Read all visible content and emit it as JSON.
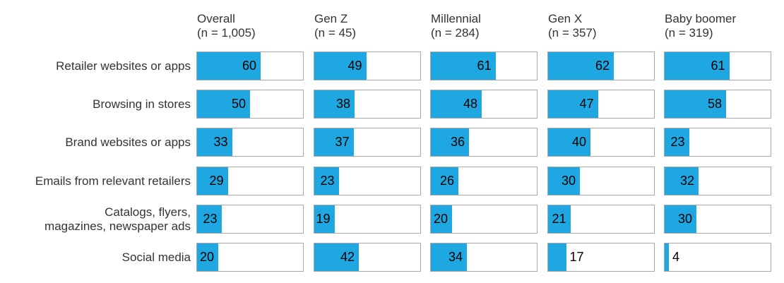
{
  "chart_data": {
    "type": "bar",
    "orientation": "horizontal",
    "xlim": [
      0,
      100
    ],
    "grid": false,
    "legend": "none",
    "bar_color": "#1ea7e1",
    "track_border_color": "#a8a8a8",
    "value_label_color": "#000000",
    "categories": [
      "Retailer websites or apps",
      "Browsing in stores",
      "Brand websites or apps",
      "Emails from relevant retailers",
      "Catalogs, flyers, magazines, newspaper ads",
      "Social media"
    ],
    "categories_display_lines": [
      [
        "Retailer websites or apps"
      ],
      [
        "Browsing in stores"
      ],
      [
        "Brand websites or apps"
      ],
      [
        "Emails from relevant retailers"
      ],
      [
        "Catalogs, flyers,",
        "magazines, newspaper ads"
      ],
      [
        "Social media"
      ]
    ],
    "series": [
      {
        "name": "Overall",
        "n_label": "(n = 1,005)",
        "values": [
          60,
          50,
          33,
          29,
          23,
          20
        ]
      },
      {
        "name": "Gen Z",
        "n_label": "(n = 45)",
        "values": [
          49,
          38,
          37,
          23,
          19,
          42
        ]
      },
      {
        "name": "Millennial",
        "n_label": "(n = 284)",
        "values": [
          61,
          48,
          36,
          26,
          20,
          34
        ]
      },
      {
        "name": "Gen X",
        "n_label": "(n = 357)",
        "values": [
          62,
          47,
          40,
          30,
          21,
          17
        ]
      },
      {
        "name": "Baby boomer",
        "n_label": "(n = 319)",
        "values": [
          61,
          58,
          23,
          32,
          30,
          4
        ]
      }
    ]
  }
}
